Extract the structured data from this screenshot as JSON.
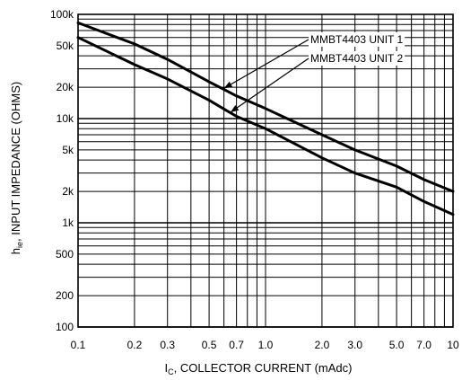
{
  "chart_data": {
    "type": "line",
    "x_scale": "log",
    "y_scale": "log",
    "xlim": [
      0.1,
      10
    ],
    "ylim": [
      100,
      100000
    ],
    "grid": true,
    "xlabel": {
      "main": "I",
      "sub": "C",
      "rest": ", COLLECTOR CURRENT (mAdc)"
    },
    "ylabel": {
      "main": "h",
      "sub": "ie",
      "rest": ", INPUT IMPEDANCE (OHMS)"
    },
    "x_ticks": [
      {
        "value": 0.1,
        "label": "0.1"
      },
      {
        "value": 0.2,
        "label": "0.2"
      },
      {
        "value": 0.3,
        "label": "0.3"
      },
      {
        "value": 0.5,
        "label": "0.5"
      },
      {
        "value": 0.7,
        "label": "0.7"
      },
      {
        "value": 1.0,
        "label": "1.0"
      },
      {
        "value": 2.0,
        "label": "2.0"
      },
      {
        "value": 3.0,
        "label": "3.0"
      },
      {
        "value": 5.0,
        "label": "5.0"
      },
      {
        "value": 7.0,
        "label": "7.0"
      },
      {
        "value": 10,
        "label": "10"
      }
    ],
    "y_ticks": [
      {
        "value": 100,
        "label": "100"
      },
      {
        "value": 200,
        "label": "200"
      },
      {
        "value": 500,
        "label": "500"
      },
      {
        "value": 1000,
        "label": "1k"
      },
      {
        "value": 2000,
        "label": "2k"
      },
      {
        "value": 5000,
        "label": "5k"
      },
      {
        "value": 10000,
        "label": "10k"
      },
      {
        "value": 20000,
        "label": "20k"
      },
      {
        "value": 50000,
        "label": "50k"
      },
      {
        "value": 100000,
        "label": "100k"
      }
    ],
    "series": [
      {
        "name": "MMBT4403 UNIT 1",
        "x": [
          0.1,
          0.2,
          0.3,
          0.5,
          0.7,
          1.0,
          2.0,
          3.0,
          5.0,
          7.0,
          10
        ],
        "y": [
          83000,
          52000,
          37000,
          22500,
          16500,
          12500,
          7000,
          5000,
          3500,
          2600,
          2000
        ]
      },
      {
        "name": "MMBT4403 UNIT 2",
        "x": [
          0.1,
          0.2,
          0.3,
          0.5,
          0.7,
          1.0,
          2.0,
          3.0,
          5.0,
          7.0,
          10
        ],
        "y": [
          60000,
          33000,
          24000,
          15000,
          10500,
          8000,
          4200,
          3000,
          2200,
          1600,
          1200
        ]
      }
    ],
    "legend_placement": "top-right",
    "annotation_targets": [
      {
        "series": "MMBT4403 UNIT 1",
        "x": 0.6,
        "y": 19500
      },
      {
        "series": "MMBT4403 UNIT 2",
        "x": 0.65,
        "y": 11500
      }
    ]
  }
}
